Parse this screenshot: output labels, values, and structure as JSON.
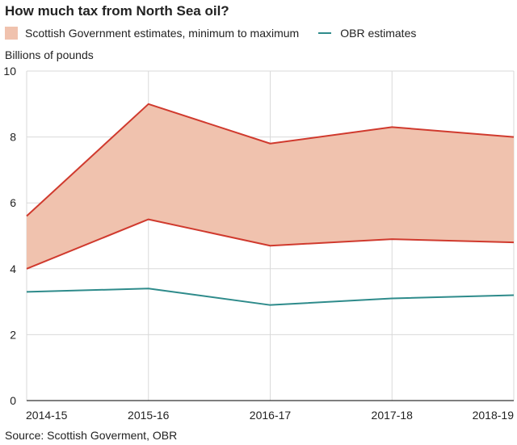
{
  "chart_data": {
    "type": "area",
    "title": "How much tax from North Sea oil?",
    "ylabel": "Billions of pounds",
    "xlabel": "",
    "categories": [
      "2014-15",
      "2015-16",
      "2016-17",
      "2017-18",
      "2018-19"
    ],
    "ylim": [
      0,
      10
    ],
    "yticks": [
      0,
      2,
      4,
      6,
      8,
      10
    ],
    "grid": true,
    "legend_position": "top",
    "series": [
      {
        "name": "Scottish Government estimates, minimum to maximum",
        "kind": "range",
        "min": [
          4.0,
          5.5,
          4.7,
          4.9,
          4.8
        ],
        "max": [
          5.6,
          9.0,
          7.8,
          8.3,
          8.0
        ],
        "color": "#f0c2ae",
        "line_color": "#d03a2e"
      },
      {
        "name": "OBR estimates",
        "kind": "line",
        "values": [
          3.3,
          3.4,
          2.9,
          3.1,
          3.2
        ],
        "color": "#2e8b8b"
      }
    ],
    "source": "Source: Scottish Goverment, OBR"
  }
}
